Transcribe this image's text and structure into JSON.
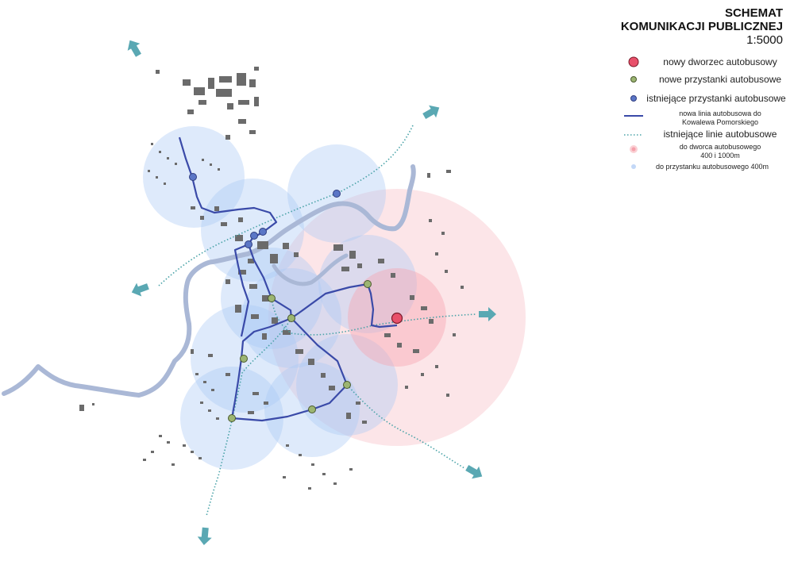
{
  "title": {
    "line1": "SCHEMAT",
    "line2": "KOMUNIKACJI PUBLICZNEJ",
    "scale": "1:5000"
  },
  "legend": {
    "bus_station": "nowy dworzec autobusowy",
    "new_stops": "nowe przystanki autobusowe",
    "existing_stops": "istniejące przystanki autobusowe",
    "new_line_a": "nowa linia autobusowa do",
    "new_line_b": "Kowalewa Pomorskiego",
    "existing_lines": "istniejące linie autobusowe",
    "station_radius_a": "do dworca autobusowego",
    "station_radius_b": "400 i 1000m",
    "stop_radius": "do przystanku autobusowego 400m"
  },
  "colors": {
    "new_line": "#3a4aa8",
    "existing_line": "#4aa3a8",
    "stop_green": "#9cb572",
    "stop_blue": "#5b76c6",
    "station_red": "#e8506a",
    "radius_pink": "#f7b0b8",
    "radius_blue": "#a9c8f4",
    "river": "#aab8d6",
    "buildings": "#6b6b6b",
    "arrow": "#5aa8b3"
  }
}
